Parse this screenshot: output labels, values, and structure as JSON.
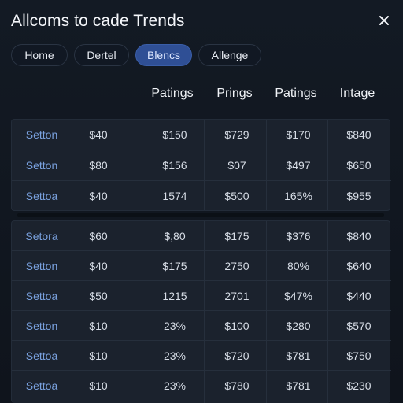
{
  "window": {
    "title": "Allcoms to cade Trends"
  },
  "tabs": [
    {
      "label": "Home",
      "active": false
    },
    {
      "label": "Dertel",
      "active": false
    },
    {
      "label": "Blencs",
      "active": true
    },
    {
      "label": "Allenge",
      "active": false
    }
  ],
  "icons": {
    "close": "close-icon"
  },
  "table": {
    "columns": [
      "Patings",
      "Prings",
      "Patings",
      "Intage"
    ],
    "group1": [
      [
        "Setton",
        "$40",
        "$150",
        "$729",
        "$170",
        "$840"
      ],
      [
        "Setton",
        "$80",
        "$156",
        "$07",
        "$497",
        "$650"
      ],
      [
        "Settoa",
        "$40",
        "1574",
        "$500",
        "165%",
        "$955"
      ]
    ],
    "group2": [
      [
        "Setora",
        "$60",
        "$,80",
        "$175",
        "$376",
        "$840"
      ],
      [
        "Setton",
        "$40",
        "$175",
        "2750",
        "80%",
        "$640"
      ],
      [
        "Settoa",
        "$50",
        "1215",
        "2701",
        "$47%",
        "$440"
      ],
      [
        "Setton",
        "$10",
        "23%",
        "$100",
        "$280",
        "$570"
      ],
      [
        "Settoa",
        "$10",
        "23%",
        "$720",
        "$781",
        "$750"
      ],
      [
        "Settoa",
        "$10",
        "23%",
        "$780",
        "$781",
        "$230"
      ]
    ]
  },
  "colors": {
    "background": "#131a24",
    "accent": "#2f4f95",
    "row_name": "#7aa2e0"
  }
}
